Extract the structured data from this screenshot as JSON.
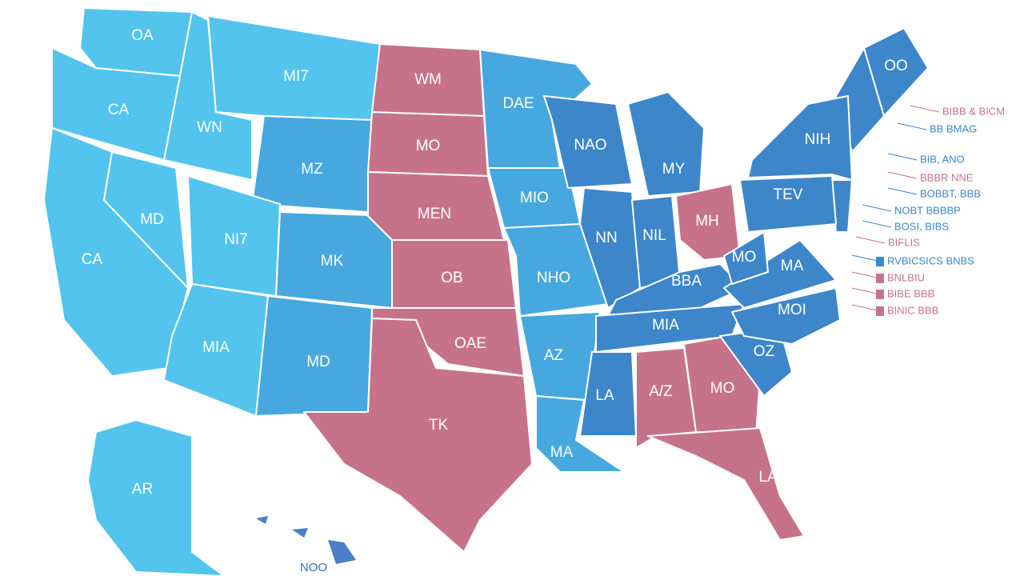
{
  "regions": [
    {
      "label": "OA"
    },
    {
      "label": "CA"
    },
    {
      "label": "CA"
    },
    {
      "label": "MD"
    },
    {
      "label": "WN"
    },
    {
      "label": "MI7"
    },
    {
      "label": "MZ"
    },
    {
      "label": "NI7"
    },
    {
      "label": "MK"
    },
    {
      "label": "MIA"
    },
    {
      "label": "MD"
    },
    {
      "label": "WM"
    },
    {
      "label": "MO"
    },
    {
      "label": "MEN"
    },
    {
      "label": "OB"
    },
    {
      "label": "OAE"
    },
    {
      "label": "TK"
    },
    {
      "label": "DAE"
    },
    {
      "label": "MIO"
    },
    {
      "label": "NHO"
    },
    {
      "label": "AZ"
    },
    {
      "label": "MA"
    },
    {
      "label": "NAO"
    },
    {
      "label": "NN"
    },
    {
      "label": "MY"
    },
    {
      "label": "NIL"
    },
    {
      "label": "MH"
    },
    {
      "label": "BBA"
    },
    {
      "label": "MIA"
    },
    {
      "label": "LA"
    },
    {
      "label": "A/Z"
    },
    {
      "label": "MO"
    },
    {
      "label": "LA"
    },
    {
      "label": "OZ"
    },
    {
      "label": "MOI"
    },
    {
      "label": "MA"
    },
    {
      "label": "MO"
    },
    {
      "label": "TEV"
    },
    {
      "label": "NIH"
    },
    {
      "label": "OO"
    },
    {
      "label": "AR"
    },
    {
      "label": "NOO"
    }
  ],
  "notes": [
    "BIBB & BICM",
    "BB BMAG",
    "BIB, ANO",
    "BBBR NNE",
    "BOBBT, BBB",
    "NOBT BBBBP",
    "BOSI, BIBS",
    "BIFLIS",
    "RVBICSICS BNBS",
    "BNLBIU",
    "BIBE BBB",
    "BINIC BBB"
  ]
}
